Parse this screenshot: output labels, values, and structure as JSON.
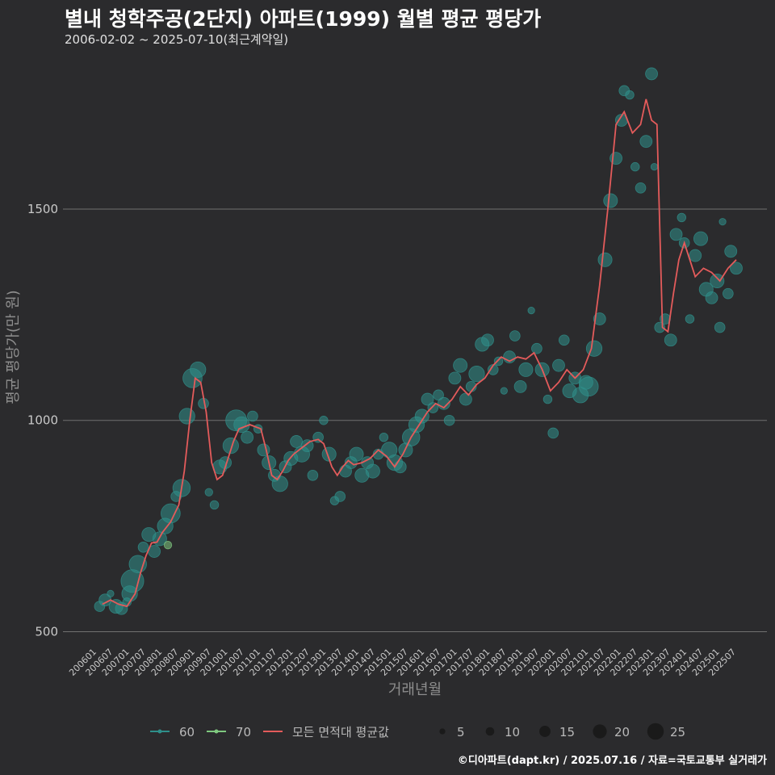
{
  "header": {
    "title": "별내 청학주공(2단지) 아파트(1999) 월별 평균 평당가",
    "subtitle": "2006-02-02 ~ 2025-07-10(최근계약일)"
  },
  "footer": {
    "credit": "©디아파트(dapt.kr) / 2025.07.16 / 자료=국토교통부 실거래가"
  },
  "colors": {
    "background": "#2b2b2d",
    "grid": "#707070",
    "series_60": "#2f8f8a",
    "series_70": "#7fc97f",
    "average_line": "#e45b5b",
    "legend_bubble": "#1a1a1a"
  },
  "chart_data": {
    "type": "scatter",
    "xlabel": "거래년월",
    "ylabel": "평균 평당가(만 원)",
    "ylim": [
      480,
      1880
    ],
    "yticks": [
      500,
      1000,
      1500
    ],
    "xlim": [
      200601,
      202512
    ],
    "xticks": [
      "200601",
      "200607",
      "200701",
      "200707",
      "200801",
      "200807",
      "200901",
      "200907",
      "201001",
      "201007",
      "201101",
      "201107",
      "201201",
      "201207",
      "201301",
      "201307",
      "201401",
      "201407",
      "201501",
      "201507",
      "201601",
      "201607",
      "201701",
      "201707",
      "201801",
      "201807",
      "201901",
      "201907",
      "202001",
      "202007",
      "202101",
      "202107",
      "202201",
      "202207",
      "202301",
      "202307",
      "202401",
      "202407",
      "202501",
      "202507"
    ],
    "legend": {
      "series": [
        {
          "name": "60",
          "color": "#2f8f8a"
        },
        {
          "name": "70",
          "color": "#7fc97f"
        },
        {
          "name": "모든 면적대 평균값",
          "color": "#e45b5b"
        }
      ],
      "sizes": [
        5,
        10,
        15,
        20,
        25
      ]
    },
    "average_line": {
      "name": "모든 면적대 평균값",
      "points": [
        [
          "2006-03",
          565
        ],
        [
          "2006-06",
          575
        ],
        [
          "2006-09",
          565
        ],
        [
          "2006-12",
          560
        ],
        [
          "2007-03",
          590
        ],
        [
          "2007-05",
          640
        ],
        [
          "2007-07",
          680
        ],
        [
          "2007-09",
          710
        ],
        [
          "2007-11",
          712
        ],
        [
          "2008-01",
          735
        ],
        [
          "2008-04",
          760
        ],
        [
          "2008-07",
          800
        ],
        [
          "2008-09",
          880
        ],
        [
          "2008-11",
          1000
        ],
        [
          "2009-01",
          1100
        ],
        [
          "2009-03",
          1090
        ],
        [
          "2009-05",
          1020
        ],
        [
          "2009-07",
          900
        ],
        [
          "2009-09",
          860
        ],
        [
          "2009-11",
          870
        ],
        [
          "2010-01",
          910
        ],
        [
          "2010-03",
          950
        ],
        [
          "2010-05",
          980
        ],
        [
          "2010-07",
          985
        ],
        [
          "2010-09",
          990
        ],
        [
          "2010-11",
          985
        ],
        [
          "2011-01",
          980
        ],
        [
          "2011-03",
          930
        ],
        [
          "2011-05",
          870
        ],
        [
          "2011-07",
          860
        ],
        [
          "2011-09",
          880
        ],
        [
          "2011-11",
          905
        ],
        [
          "2012-01",
          920
        ],
        [
          "2012-04",
          935
        ],
        [
          "2012-07",
          950
        ],
        [
          "2012-10",
          955
        ],
        [
          "2012-12",
          945
        ],
        [
          "2013-03",
          890
        ],
        [
          "2013-05",
          870
        ],
        [
          "2013-07",
          890
        ],
        [
          "2013-09",
          905
        ],
        [
          "2013-11",
          895
        ],
        [
          "2014-02",
          900
        ],
        [
          "2014-05",
          910
        ],
        [
          "2014-08",
          930
        ],
        [
          "2014-11",
          915
        ],
        [
          "2015-02",
          890
        ],
        [
          "2015-05",
          920
        ],
        [
          "2015-08",
          960
        ],
        [
          "2015-11",
          990
        ],
        [
          "2016-02",
          1020
        ],
        [
          "2016-05",
          1040
        ],
        [
          "2016-08",
          1030
        ],
        [
          "2016-11",
          1050
        ],
        [
          "2017-02",
          1080
        ],
        [
          "2017-05",
          1060
        ],
        [
          "2017-08",
          1085
        ],
        [
          "2017-11",
          1100
        ],
        [
          "2018-02",
          1130
        ],
        [
          "2018-05",
          1150
        ],
        [
          "2018-08",
          1140
        ],
        [
          "2018-11",
          1150
        ],
        [
          "2019-02",
          1145
        ],
        [
          "2019-05",
          1160
        ],
        [
          "2019-08",
          1120
        ],
        [
          "2019-11",
          1070
        ],
        [
          "2020-02",
          1090
        ],
        [
          "2020-05",
          1120
        ],
        [
          "2020-08",
          1100
        ],
        [
          "2020-11",
          1120
        ],
        [
          "2021-02",
          1170
        ],
        [
          "2021-05",
          1320
        ],
        [
          "2021-08",
          1500
        ],
        [
          "2021-11",
          1700
        ],
        [
          "2022-02",
          1730
        ],
        [
          "2022-05",
          1680
        ],
        [
          "2022-08",
          1700
        ],
        [
          "2022-10",
          1760
        ],
        [
          "2022-12",
          1710
        ],
        [
          "2023-02",
          1700
        ],
        [
          "2023-04",
          1220
        ],
        [
          "2023-06",
          1210
        ],
        [
          "2023-08",
          1300
        ],
        [
          "2023-10",
          1380
        ],
        [
          "2023-12",
          1420
        ],
        [
          "2024-02",
          1380
        ],
        [
          "2024-04",
          1340
        ],
        [
          "2024-07",
          1360
        ],
        [
          "2024-10",
          1350
        ],
        [
          "2025-01",
          1330
        ],
        [
          "2025-04",
          1360
        ],
        [
          "2025-07",
          1380
        ]
      ]
    },
    "series": [
      {
        "name": "60",
        "points": [
          [
            "2006-02",
            560,
            8
          ],
          [
            "2006-04",
            575,
            10
          ],
          [
            "2006-06",
            590,
            4
          ],
          [
            "2006-08",
            560,
            12
          ],
          [
            "2006-10",
            555,
            10
          ],
          [
            "2006-12",
            570,
            6
          ],
          [
            "2007-01",
            590,
            14
          ],
          [
            "2007-02",
            620,
            22
          ],
          [
            "2007-04",
            660,
            16
          ],
          [
            "2007-06",
            700,
            8
          ],
          [
            "2007-08",
            730,
            12
          ],
          [
            "2007-10",
            690,
            10
          ],
          [
            "2007-12",
            720,
            12
          ],
          [
            "2008-02",
            750,
            14
          ],
          [
            "2008-04",
            780,
            18
          ],
          [
            "2008-06",
            820,
            8
          ],
          [
            "2008-08",
            840,
            16
          ],
          [
            "2008-10",
            1010,
            14
          ],
          [
            "2008-12",
            1100,
            18
          ],
          [
            "2009-02",
            1120,
            14
          ],
          [
            "2009-04",
            1040,
            8
          ],
          [
            "2009-06",
            830,
            5
          ],
          [
            "2009-08",
            800,
            6
          ],
          [
            "2009-10",
            890,
            12
          ],
          [
            "2009-12",
            900,
            10
          ],
          [
            "2010-02",
            940,
            14
          ],
          [
            "2010-04",
            1000,
            20
          ],
          [
            "2010-06",
            990,
            14
          ],
          [
            "2010-08",
            960,
            10
          ],
          [
            "2010-10",
            1010,
            8
          ],
          [
            "2010-12",
            980,
            6
          ],
          [
            "2011-02",
            930,
            10
          ],
          [
            "2011-04",
            900,
            12
          ],
          [
            "2011-06",
            870,
            10
          ],
          [
            "2011-08",
            850,
            14
          ],
          [
            "2011-10",
            890,
            10
          ],
          [
            "2011-12",
            910,
            12
          ],
          [
            "2012-02",
            950,
            10
          ],
          [
            "2012-04",
            920,
            14
          ],
          [
            "2012-06",
            940,
            10
          ],
          [
            "2012-08",
            870,
            8
          ],
          [
            "2012-10",
            960,
            8
          ],
          [
            "2012-12",
            1000,
            6
          ],
          [
            "2013-02",
            920,
            12
          ],
          [
            "2013-04",
            810,
            6
          ],
          [
            "2013-06",
            820,
            8
          ],
          [
            "2013-08",
            880,
            10
          ],
          [
            "2013-10",
            900,
            10
          ],
          [
            "2013-12",
            920,
            12
          ],
          [
            "2014-02",
            870,
            12
          ],
          [
            "2014-04",
            900,
            10
          ],
          [
            "2014-06",
            880,
            12
          ],
          [
            "2014-08",
            920,
            8
          ],
          [
            "2014-10",
            960,
            6
          ],
          [
            "2014-12",
            930,
            14
          ],
          [
            "2015-02",
            900,
            14
          ],
          [
            "2015-04",
            890,
            10
          ],
          [
            "2015-06",
            930,
            12
          ],
          [
            "2015-08",
            960,
            16
          ],
          [
            "2015-10",
            990,
            14
          ],
          [
            "2015-12",
            1010,
            12
          ],
          [
            "2016-02",
            1050,
            10
          ],
          [
            "2016-04",
            1030,
            8
          ],
          [
            "2016-06",
            1060,
            8
          ],
          [
            "2016-08",
            1040,
            10
          ],
          [
            "2016-10",
            1000,
            8
          ],
          [
            "2016-12",
            1100,
            10
          ],
          [
            "2017-02",
            1130,
            12
          ],
          [
            "2017-04",
            1050,
            10
          ],
          [
            "2017-06",
            1080,
            8
          ],
          [
            "2017-08",
            1110,
            14
          ],
          [
            "2017-10",
            1180,
            12
          ],
          [
            "2017-12",
            1190,
            10
          ],
          [
            "2018-02",
            1120,
            8
          ],
          [
            "2018-04",
            1140,
            6
          ],
          [
            "2018-06",
            1070,
            4
          ],
          [
            "2018-08",
            1150,
            10
          ],
          [
            "2018-10",
            1200,
            8
          ],
          [
            "2018-12",
            1080,
            10
          ],
          [
            "2019-02",
            1120,
            12
          ],
          [
            "2019-04",
            1260,
            4
          ],
          [
            "2019-06",
            1170,
            8
          ],
          [
            "2019-08",
            1120,
            12
          ],
          [
            "2019-10",
            1050,
            6
          ],
          [
            "2019-12",
            970,
            8
          ],
          [
            "2020-02",
            1130,
            10
          ],
          [
            "2020-04",
            1190,
            8
          ],
          [
            "2020-06",
            1070,
            12
          ],
          [
            "2020-08",
            1100,
            10
          ],
          [
            "2020-10",
            1060,
            14
          ],
          [
            "2020-12",
            1090,
            12
          ],
          [
            "2021-01",
            1080,
            18
          ],
          [
            "2021-03",
            1170,
            14
          ],
          [
            "2021-05",
            1240,
            10
          ],
          [
            "2021-07",
            1380,
            12
          ],
          [
            "2021-09",
            1520,
            12
          ],
          [
            "2021-11",
            1620,
            10
          ],
          [
            "2022-01",
            1710,
            10
          ],
          [
            "2022-02",
            1780,
            8
          ],
          [
            "2022-04",
            1770,
            6
          ],
          [
            "2022-06",
            1600,
            6
          ],
          [
            "2022-08",
            1550,
            8
          ],
          [
            "2022-10",
            1660,
            10
          ],
          [
            "2022-12",
            1820,
            10
          ],
          [
            "2023-01",
            1600,
            4
          ],
          [
            "2023-03",
            1220,
            8
          ],
          [
            "2023-05",
            1240,
            8
          ],
          [
            "2023-07",
            1190,
            10
          ],
          [
            "2023-09",
            1440,
            10
          ],
          [
            "2023-11",
            1480,
            6
          ],
          [
            "2023-12",
            1420,
            8
          ],
          [
            "2024-02",
            1240,
            6
          ],
          [
            "2024-04",
            1390,
            10
          ],
          [
            "2024-06",
            1430,
            12
          ],
          [
            "2024-08",
            1310,
            12
          ],
          [
            "2024-10",
            1290,
            10
          ],
          [
            "2024-12",
            1330,
            12
          ],
          [
            "2025-01",
            1220,
            8
          ],
          [
            "2025-02",
            1470,
            4
          ],
          [
            "2025-04",
            1300,
            8
          ],
          [
            "2025-05",
            1400,
            10
          ],
          [
            "2025-07",
            1360,
            10
          ]
        ]
      },
      {
        "name": "70",
        "points": [
          [
            "2008-03",
            705,
            5
          ]
        ]
      }
    ]
  }
}
